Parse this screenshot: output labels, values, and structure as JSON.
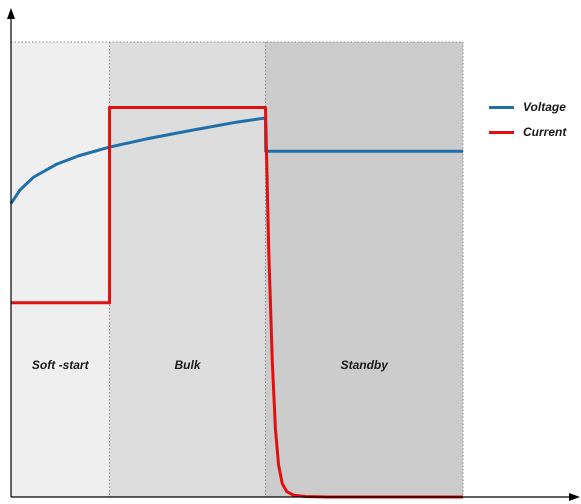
{
  "chart_data": {
    "type": "line",
    "title": "",
    "xlabel": "",
    "ylabel": "",
    "xlim": [
      0,
      100
    ],
    "ylim": [
      0,
      100
    ],
    "grid": false,
    "legend_position": "right",
    "phases": [
      {
        "label": "Soft -start",
        "x_start": 0,
        "x_end": 21.8,
        "color": "#efefef"
      },
      {
        "label": "Bulk",
        "x_start": 21.8,
        "x_end": 56.3,
        "color": "#dddddd"
      },
      {
        "label": "Standby",
        "x_start": 56.3,
        "x_end": 100,
        "color": "#cccccc"
      }
    ],
    "series": [
      {
        "name": "Voltage",
        "color": "#1f6fa8",
        "x": [
          0,
          2,
          5,
          10,
          15,
          21.8,
          30,
          40,
          50,
          56.3,
          56.35,
          58,
          70,
          80,
          90,
          100
        ],
        "y": [
          64.5,
          67.5,
          70.3,
          73.1,
          75.0,
          76.9,
          78.7,
          80.6,
          82.4,
          83.3,
          76.0,
          76.0,
          76.0,
          76.0,
          76.0,
          76.0
        ]
      },
      {
        "name": "Current",
        "color": "#e01010",
        "x": [
          0,
          21.8,
          21.8,
          56.3,
          56.3,
          57.0,
          57.8,
          58.5,
          59.2,
          60.0,
          61.0,
          62.5,
          65,
          70,
          100
        ],
        "y": [
          42.7,
          42.7,
          85.6,
          85.6,
          85.6,
          55.0,
          30.0,
          15.0,
          7.0,
          3.0,
          1.2,
          0.4,
          0.1,
          0,
          0
        ]
      }
    ]
  }
}
